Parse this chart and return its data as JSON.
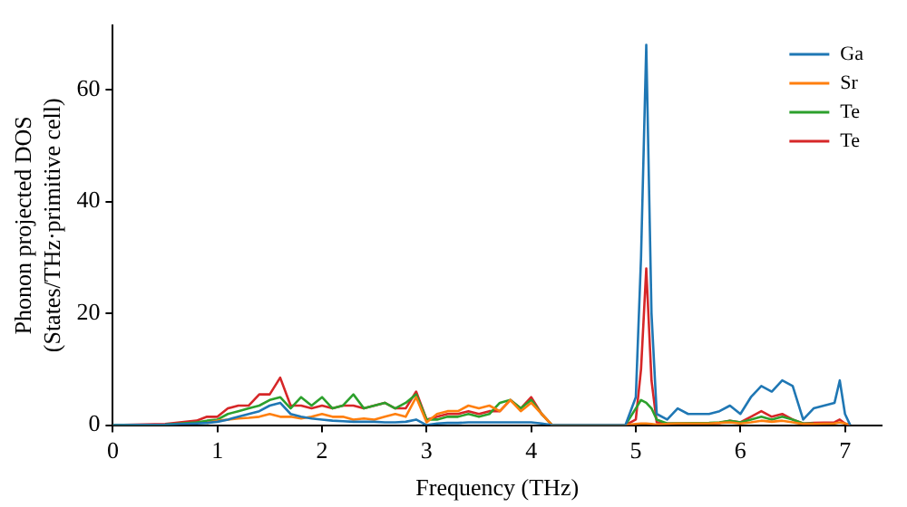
{
  "chart_data": {
    "type": "line",
    "xlabel": "Frequency (THz)",
    "ylabel": "Phonon projected DOS\n(States/THz·primitive cell)",
    "x": [
      0,
      0.5,
      0.8,
      0.9,
      1.0,
      1.1,
      1.2,
      1.3,
      1.4,
      1.5,
      1.6,
      1.7,
      1.8,
      1.9,
      2.0,
      2.1,
      2.2,
      2.3,
      2.4,
      2.5,
      2.6,
      2.7,
      2.8,
      2.9,
      3.0,
      3.1,
      3.2,
      3.3,
      3.4,
      3.5,
      3.6,
      3.7,
      3.8,
      3.9,
      4.0,
      4.1,
      4.2,
      4.5,
      4.9,
      5.0,
      5.05,
      5.1,
      5.15,
      5.2,
      5.3,
      5.4,
      5.5,
      5.7,
      5.8,
      5.9,
      6.0,
      6.1,
      6.2,
      6.3,
      6.4,
      6.5,
      6.6,
      6.7,
      6.9,
      6.95,
      7.0,
      7.05
    ],
    "series": [
      {
        "name": "Ga",
        "color": "#1f77b4",
        "values": [
          0,
          0.1,
          0.3,
          0.4,
          0.6,
          1.0,
          1.5,
          2.0,
          2.5,
          3.5,
          4.0,
          2.0,
          1.5,
          1.2,
          1.0,
          0.8,
          0.7,
          0.6,
          0.6,
          0.6,
          0.5,
          0.5,
          0.6,
          1.0,
          0,
          0.3,
          0.4,
          0.4,
          0.5,
          0.5,
          0.5,
          0.5,
          0.5,
          0.5,
          0.5,
          0.3,
          0,
          null,
          0,
          5,
          30,
          68,
          20,
          2,
          1,
          3,
          2,
          2,
          2.5,
          3.5,
          2,
          5,
          7,
          6,
          8,
          7,
          1,
          3,
          4,
          8,
          2,
          0
        ]
      },
      {
        "name": "Sr",
        "color": "#ff7f0e",
        "values": [
          null,
          null,
          null,
          0.4,
          0.8,
          1.0,
          1.2,
          1.3,
          1.5,
          2.0,
          1.5,
          1.5,
          1.2,
          1.5,
          2.0,
          1.5,
          1.5,
          1.0,
          1.2,
          1.0,
          1.5,
          2.0,
          1.5,
          5.0,
          0.5,
          2.0,
          2.5,
          2.5,
          3.5,
          3.0,
          3.5,
          2.5,
          4.5,
          2.5,
          4.0,
          2.0,
          0,
          0,
          0,
          0.2,
          0.3,
          0.3,
          0.2,
          0.1,
          0.2,
          0.3,
          0.3,
          0.3,
          0.4,
          0.5,
          0.3,
          0.5,
          0.8,
          0.6,
          0.8,
          0.5,
          0.2,
          0.2,
          0.3,
          0.5,
          0.3,
          0
        ]
      },
      {
        "name": "Te",
        "color": "#2ca02c",
        "values": [
          0,
          0.1,
          0.5,
          0.8,
          1.0,
          2.0,
          2.5,
          3.0,
          3.5,
          4.5,
          5.0,
          3.0,
          5.0,
          3.5,
          5.0,
          3.0,
          3.5,
          5.5,
          3.0,
          3.5,
          4.0,
          3.0,
          4.0,
          5.5,
          1.0,
          1.0,
          1.5,
          1.5,
          2.0,
          1.5,
          2.0,
          4.0,
          4.5,
          3.0,
          4.5,
          2.0,
          0,
          0,
          0,
          3,
          4.5,
          4,
          3,
          1,
          0.3,
          null,
          null,
          0.4,
          0.5,
          0.8,
          0.5,
          1.0,
          1.5,
          1.0,
          1.5,
          1.0,
          0.3,
          0.3,
          null,
          null,
          null,
          null
        ]
      },
      {
        "name": "Te",
        "color": "#d62728",
        "values": [
          0,
          0.2,
          0.8,
          1.5,
          1.5,
          3.0,
          3.5,
          3.5,
          5.5,
          5.5,
          8.5,
          3.5,
          3.5,
          3.0,
          3.5,
          3.0,
          3.5,
          3.5,
          3.0,
          3.5,
          4.0,
          3.0,
          3.0,
          6.0,
          1.0,
          1.5,
          2.0,
          2.0,
          2.5,
          2.0,
          2.5,
          2.5,
          4.5,
          3.0,
          5.0,
          2.0,
          0,
          0,
          0,
          1,
          10,
          28,
          8,
          0.5,
          0.3,
          0.3,
          0.3,
          0.3,
          0.4,
          0.8,
          0.5,
          1.5,
          2.5,
          1.5,
          2.0,
          1.0,
          0.3,
          0.4,
          0.5,
          1.0,
          0.3,
          0
        ]
      }
    ],
    "xlim": [
      0,
      7.35
    ],
    "ylim": [
      0,
      71.5
    ],
    "xticks": [
      0,
      1,
      2,
      3,
      4,
      5,
      6,
      7
    ],
    "yticks": [
      0,
      20,
      40,
      60
    ],
    "legend": "top right",
    "grid": false,
    "marker": "none",
    "line_style": "solid"
  }
}
